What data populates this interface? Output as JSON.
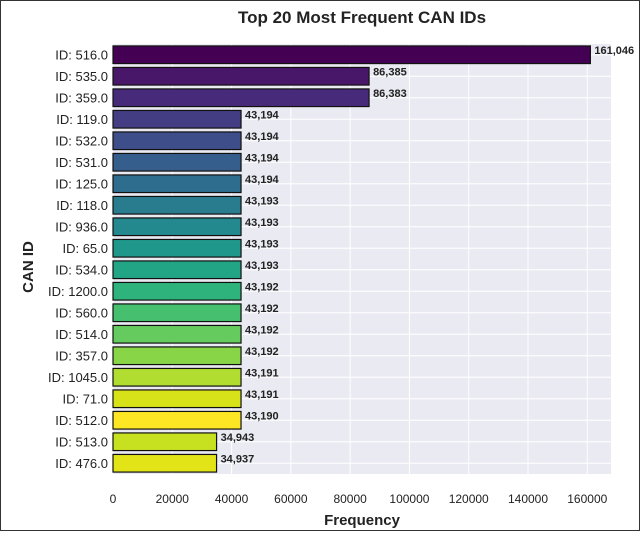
{
  "chart_data": {
    "type": "bar",
    "orientation": "horizontal",
    "title": "Top 20 Most Frequent CAN IDs",
    "xlabel": "Frequency",
    "ylabel": "CAN ID",
    "xlim": [
      0,
      168000
    ],
    "xticks": [
      0,
      20000,
      40000,
      60000,
      80000,
      100000,
      120000,
      140000,
      160000
    ],
    "xtick_labels": [
      "0",
      "20000",
      "40000",
      "60000",
      "80000",
      "100000",
      "120000",
      "140000",
      "160000"
    ],
    "grid": true,
    "colormap": "viridis",
    "categories": [
      "ID: 516.0",
      "ID: 535.0",
      "ID: 359.0",
      "ID: 119.0",
      "ID: 532.0",
      "ID: 531.0",
      "ID: 125.0",
      "ID: 118.0",
      "ID: 936.0",
      "ID: 65.0",
      "ID: 534.0",
      "ID: 1200.0",
      "ID: 560.0",
      "ID: 514.0",
      "ID: 357.0",
      "ID: 1045.0",
      "ID: 71.0",
      "ID: 512.0",
      "ID: 513.0",
      "ID: 476.0"
    ],
    "values": [
      161046,
      86385,
      86383,
      43194,
      43194,
      43194,
      43194,
      43193,
      43193,
      43193,
      43193,
      43192,
      43192,
      43192,
      43192,
      43191,
      43191,
      43190,
      34943,
      34937
    ],
    "value_labels": [
      "161,046",
      "86,385",
      "86,383",
      "43,194",
      "43,194",
      "43,194",
      "43,194",
      "43,193",
      "43,193",
      "43,193",
      "43,193",
      "43,192",
      "43,192",
      "43,192",
      "43,192",
      "43,191",
      "43,191",
      "43,190",
      "34,943",
      "34,937"
    ],
    "colors": [
      "#440154",
      "#481769",
      "#472a7a",
      "#433d84",
      "#3d4e8a",
      "#355e8d",
      "#2e6d8e",
      "#297b8e",
      "#23898e",
      "#1f978b",
      "#21a585",
      "#2eb37c",
      "#46c06f",
      "#65cb5e",
      "#89d548",
      "#b0dd2f",
      "#d8e219",
      "#fde725",
      "#c7e020",
      "#e2e418"
    ]
  }
}
